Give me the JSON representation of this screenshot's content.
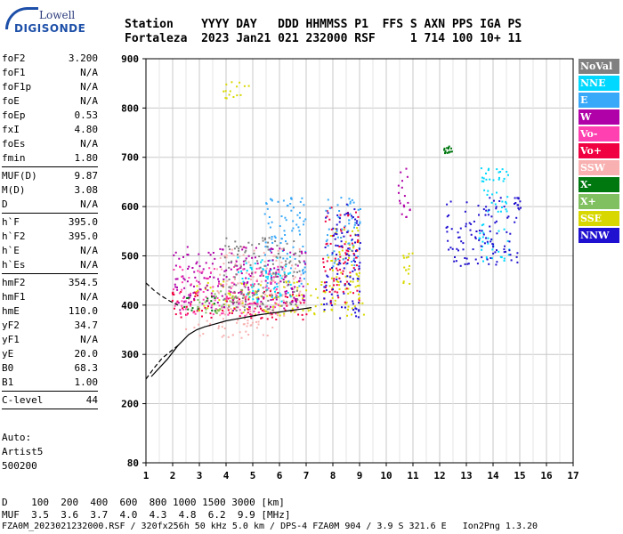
{
  "logo": {
    "line1": "Lowell",
    "line2": "DIGISONDE"
  },
  "header": {
    "labels": [
      "Station",
      "YYYY",
      "DAY",
      "DDD",
      "HHMMSS",
      "P1",
      "FFS",
      "S",
      "AXN",
      "PPS",
      "IGA",
      "PS"
    ],
    "values": [
      "Fortaleza",
      "2023",
      "Jan21",
      "021",
      "232000",
      "RSF",
      "",
      "1",
      "714",
      "100",
      "10+",
      "11"
    ]
  },
  "params": {
    "groups": [
      [
        {
          "label": "foF2",
          "value": "3.200"
        },
        {
          "label": "foF1",
          "value": "N/A"
        },
        {
          "label": "foF1p",
          "value": "N/A"
        },
        {
          "label": "foE",
          "value": "N/A"
        },
        {
          "label": "foEp",
          "value": "0.53"
        },
        {
          "label": "fxI",
          "value": "4.80"
        },
        {
          "label": "foEs",
          "value": "N/A"
        },
        {
          "label": "fmin",
          "value": "1.80"
        }
      ],
      [
        {
          "label": "MUF(D)",
          "value": "9.87"
        },
        {
          "label": "M(D)",
          "value": "3.08"
        },
        {
          "label": "D",
          "value": "N/A"
        }
      ],
      [
        {
          "label": "h`F",
          "value": "395.0"
        },
        {
          "label": "h`F2",
          "value": "395.0"
        },
        {
          "label": "h`E",
          "value": "N/A"
        },
        {
          "label": "h`Es",
          "value": "N/A"
        }
      ],
      [
        {
          "label": "hmF2",
          "value": "354.5"
        },
        {
          "label": "hmF1",
          "value": "N/A"
        },
        {
          "label": "hmE",
          "value": "110.0"
        },
        {
          "label": "yF2",
          "value": "34.7"
        },
        {
          "label": "yF1",
          "value": "N/A"
        },
        {
          "label": "yE",
          "value": "20.0"
        },
        {
          "label": "B0",
          "value": "68.3"
        },
        {
          "label": "B1",
          "value": "1.00"
        }
      ],
      [
        {
          "label": "C-level",
          "value": "44"
        }
      ]
    ]
  },
  "auto": {
    "line1": "Auto:",
    "line2": "Artist5",
    "line3": "500200"
  },
  "legend": [
    {
      "label": "NoVal",
      "color": "#808080"
    },
    {
      "label": "NNE",
      "color": "#00d8ff"
    },
    {
      "label": "E",
      "color": "#38a8f8"
    },
    {
      "label": "W",
      "color": "#b000a8"
    },
    {
      "label": "Vo-",
      "color": "#ff40b0"
    },
    {
      "label": "Vo+",
      "color": "#f00040"
    },
    {
      "label": "SSW",
      "color": "#f8b0b0"
    },
    {
      "label": "X-",
      "color": "#007810"
    },
    {
      "label": "X+",
      "color": "#80c060"
    },
    {
      "label": "SSE",
      "color": "#d8d800"
    },
    {
      "label": "NNW",
      "color": "#2010d0"
    }
  ],
  "scale": {
    "row1": "D    100  200  400  600  800 1000 1500 3000 [km]",
    "row2": "MUF  3.5  3.6  3.7  4.0  4.3  4.8  6.2  9.9 [MHz]"
  },
  "footer": "FZA0M_2023021232000.RSF / 320fx256h 50 kHz 5.0 km / DPS-4 FZA0M 904 / 3.9 S 321.6 E   Ion2Png 1.3.20",
  "chart_data": {
    "type": "scatter",
    "xlim": [
      1,
      17
    ],
    "ylim": [
      80,
      900
    ],
    "x_ticks": [
      1,
      2,
      3,
      4,
      5,
      6,
      7,
      8,
      9,
      10,
      11,
      12,
      13,
      14,
      15,
      16,
      17
    ],
    "y_ticks": [
      80,
      200,
      300,
      400,
      500,
      600,
      700,
      800,
      900
    ],
    "grid": true,
    "clusters": [
      {
        "name": "SSW",
        "color": "#f8b0b0",
        "x": [
          2.4,
          5.8
        ],
        "y": [
          335,
          375
        ]
      },
      {
        "name": "SSW",
        "color": "#f8b0b0",
        "x": [
          3.6,
          6.8
        ],
        "y": [
          380,
          520
        ]
      },
      {
        "name": "SSE",
        "color": "#d8d800",
        "x": [
          2.8,
          9.2
        ],
        "y": [
          380,
          450
        ]
      },
      {
        "name": "SSE",
        "color": "#d8d800",
        "x": [
          7.8,
          9.0
        ],
        "y": [
          430,
          560
        ]
      },
      {
        "name": "SSE",
        "color": "#d8d800",
        "x": [
          10.6,
          11.0
        ],
        "y": [
          440,
          520
        ]
      },
      {
        "name": "Vo+",
        "color": "#f00040",
        "x": [
          1.9,
          7.0
        ],
        "y": [
          370,
          430
        ]
      },
      {
        "name": "Vo+",
        "color": "#f00040",
        "x": [
          7.6,
          9.0
        ],
        "y": [
          400,
          600
        ]
      },
      {
        "name": "E",
        "color": "#38a8f8",
        "x": [
          5.4,
          7.0
        ],
        "y": [
          430,
          620
        ]
      },
      {
        "name": "E",
        "color": "#38a8f8",
        "x": [
          7.6,
          9.0
        ],
        "y": [
          480,
          620
        ]
      },
      {
        "name": "NNE",
        "color": "#00d8ff",
        "x": [
          4.4,
          6.4
        ],
        "y": [
          400,
          500
        ]
      },
      {
        "name": "NNE",
        "color": "#00d8ff",
        "x": [
          13.4,
          14.6
        ],
        "y": [
          490,
          680
        ]
      },
      {
        "name": "W",
        "color": "#b000a8",
        "x": [
          2.0,
          7.0
        ],
        "y": [
          390,
          520
        ]
      },
      {
        "name": "W",
        "color": "#b000a8",
        "x": [
          10.4,
          11.0
        ],
        "y": [
          580,
          680
        ]
      },
      {
        "name": "Vo-",
        "color": "#ff40b0",
        "x": [
          2.0,
          6.0
        ],
        "y": [
          380,
          480
        ]
      },
      {
        "name": "X-",
        "color": "#007810",
        "x": [
          2.4,
          3.6
        ],
        "y": [
          390,
          420
        ]
      },
      {
        "name": "X-",
        "color": "#007810",
        "x": [
          12.1,
          12.5
        ],
        "y": [
          710,
          725
        ]
      },
      {
        "name": "X+",
        "color": "#80c060",
        "x": [
          2.8,
          4.4
        ],
        "y": [
          385,
          430
        ]
      },
      {
        "name": "NNW",
        "color": "#2010d0",
        "x": [
          7.6,
          9.0
        ],
        "y": [
          370,
          610
        ]
      },
      {
        "name": "NNW",
        "color": "#2010d0",
        "x": [
          12.2,
          15.0
        ],
        "y": [
          480,
          620
        ]
      },
      {
        "name": "NoVal",
        "color": "#808080",
        "x": [
          3.8,
          6.8
        ],
        "y": [
          390,
          540
        ]
      },
      {
        "name": "SSE",
        "color": "#d8d800",
        "x": [
          3.8,
          5.0
        ],
        "y": [
          820,
          860
        ]
      }
    ],
    "curve_solid": {
      "x": [
        1.2,
        1.8,
        2.2,
        2.6,
        2.9,
        3.2,
        3.6,
        4.0,
        4.4,
        4.8,
        5.2,
        5.6,
        6.0,
        6.4,
        6.8,
        7.2
      ],
      "y": [
        255,
        290,
        318,
        340,
        350,
        356,
        362,
        368,
        372,
        376,
        380,
        383,
        386,
        389,
        392,
        395
      ]
    },
    "curve_dashed_lower": {
      "x": [
        1.0,
        1.3,
        1.6,
        1.9,
        2.2
      ],
      "y": [
        250,
        272,
        292,
        305,
        318
      ]
    },
    "curve_dashed_upper": {
      "x": [
        1.0,
        1.3,
        1.6,
        1.9,
        2.2
      ],
      "y": [
        445,
        430,
        418,
        408,
        400
      ]
    }
  }
}
